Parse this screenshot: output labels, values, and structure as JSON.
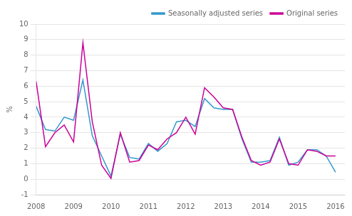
{
  "chart_data": {
    "type": "line",
    "ylabel": "%",
    "x": [
      2008.0,
      2008.25,
      2008.5,
      2008.75,
      2009.0,
      2009.25,
      2009.5,
      2009.75,
      2010.0,
      2010.25,
      2010.5,
      2010.75,
      2011.0,
      2011.25,
      2011.5,
      2011.75,
      2012.0,
      2012.25,
      2012.5,
      2012.75,
      2013.0,
      2013.25,
      2013.5,
      2013.75,
      2014.0,
      2014.25,
      2014.5,
      2014.75,
      2015.0,
      2015.25,
      2015.5,
      2015.75,
      2016.0
    ],
    "series": [
      {
        "name": "Seasonally adjusted series",
        "color": "#3399cc",
        "values": [
          4.7,
          3.2,
          3.1,
          4.0,
          3.8,
          6.4,
          2.8,
          1.5,
          0.2,
          2.9,
          1.4,
          1.3,
          2.3,
          1.8,
          2.3,
          3.7,
          3.8,
          3.4,
          5.2,
          4.6,
          4.5,
          4.5,
          2.6,
          1.1,
          1.1,
          1.2,
          2.7,
          0.9,
          1.1,
          1.9,
          1.9,
          1.5,
          0.45
        ]
      },
      {
        "name": "Original series",
        "color": "#cc0099",
        "values": [
          6.3,
          2.1,
          3.0,
          3.5,
          2.4,
          8.8,
          3.7,
          0.9,
          0.05,
          3.0,
          1.1,
          1.2,
          2.2,
          1.9,
          2.6,
          3.0,
          4.0,
          2.9,
          5.9,
          5.3,
          4.6,
          4.5,
          2.7,
          1.2,
          0.9,
          1.1,
          2.6,
          1.0,
          0.9,
          1.9,
          1.8,
          1.5,
          1.5
        ]
      }
    ],
    "xlim": [
      2008.0,
      2016.25
    ],
    "xticks": [
      2008,
      2009,
      2010,
      2011,
      2012,
      2013,
      2014,
      2015,
      2016
    ],
    "ylim": [
      -1,
      10
    ],
    "yticks": [
      -1,
      0,
      1,
      2,
      3,
      4,
      5,
      6,
      7,
      8,
      9,
      10
    ],
    "grid": "y",
    "legend": "upper right"
  }
}
